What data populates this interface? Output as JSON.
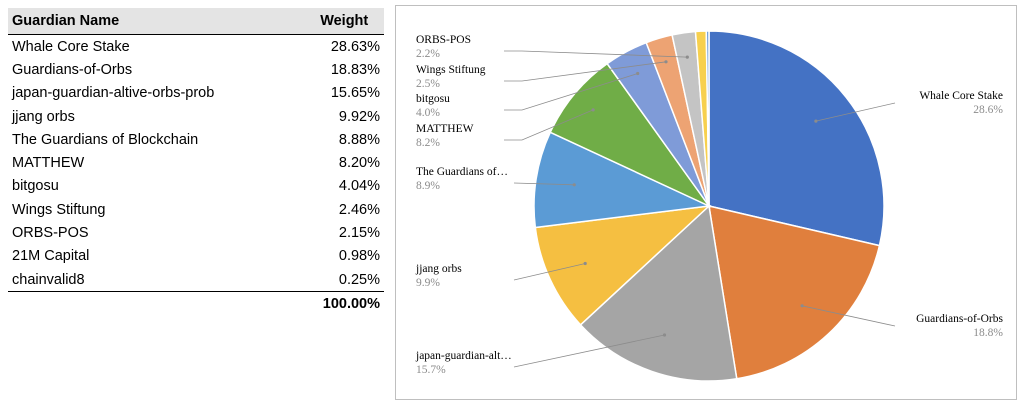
{
  "table": {
    "header": {
      "name": "Guardian Name",
      "weight": "Weight"
    },
    "rows": [
      {
        "name": "Whale Core Stake",
        "weight": "28.63%"
      },
      {
        "name": "Guardians-of-Orbs",
        "weight": "18.83%"
      },
      {
        "name": "japan-guardian-altive-orbs-prob",
        "weight": "15.65%"
      },
      {
        "name": "jjang orbs",
        "weight": "9.92%"
      },
      {
        "name": "The Guardians of Blockchain",
        "weight": "8.88%"
      },
      {
        "name": "MATTHEW",
        "weight": "8.20%"
      },
      {
        "name": "bitgosu",
        "weight": "4.04%"
      },
      {
        "name": "Wings Stiftung",
        "weight": "2.46%"
      },
      {
        "name": "ORBS-POS",
        "weight": "2.15%"
      },
      {
        "name": "21M Capital",
        "weight": "0.98%"
      },
      {
        "name": "chainvalid8",
        "weight": "0.25%"
      }
    ],
    "total": "100.00%"
  },
  "chart_data": {
    "type": "pie",
    "title": "",
    "start_angle": "12 o'clock",
    "direction": "clockwise",
    "slices": [
      {
        "name": "Whale Core Stake",
        "label": "Whale Core Stake",
        "value": 28.63,
        "value_label": "28.6%",
        "color": "#4472c4"
      },
      {
        "name": "Guardians-of-Orbs",
        "label": "Guardians-of-Orbs",
        "value": 18.83,
        "value_label": "18.8%",
        "color": "#e07f3d"
      },
      {
        "name": "japan-guardian-altive-orbs-prob",
        "label": "japan-guardian-alt…",
        "value": 15.65,
        "value_label": "15.7%",
        "color": "#a5a5a5"
      },
      {
        "name": "jjang orbs",
        "label": "jjang orbs",
        "value": 9.92,
        "value_label": "9.9%",
        "color": "#f5bf41"
      },
      {
        "name": "The Guardians of Blockchain",
        "label": "The Guardians of…",
        "value": 8.88,
        "value_label": "8.9%",
        "color": "#5b9bd5"
      },
      {
        "name": "MATTHEW",
        "label": "MATTHEW",
        "value": 8.2,
        "value_label": "8.2%",
        "color": "#70ad47"
      },
      {
        "name": "bitgosu",
        "label": "bitgosu",
        "value": 4.04,
        "value_label": "4.0%",
        "color": "#7f9bd8"
      },
      {
        "name": "Wings Stiftung",
        "label": "Wings Stiftung",
        "value": 2.46,
        "value_label": "2.5%",
        "color": "#eda373"
      },
      {
        "name": "ORBS-POS",
        "label": "ORBS-POS",
        "value": 2.15,
        "value_label": "2.2%",
        "color": "#c4c4c4"
      },
      {
        "name": "21M Capital",
        "label": "",
        "value": 0.98,
        "value_label": "",
        "color": "#f7d04e"
      },
      {
        "name": "chainvalid8",
        "label": "",
        "value": 0.25,
        "value_label": "",
        "color": "#6f9fd8"
      }
    ]
  }
}
